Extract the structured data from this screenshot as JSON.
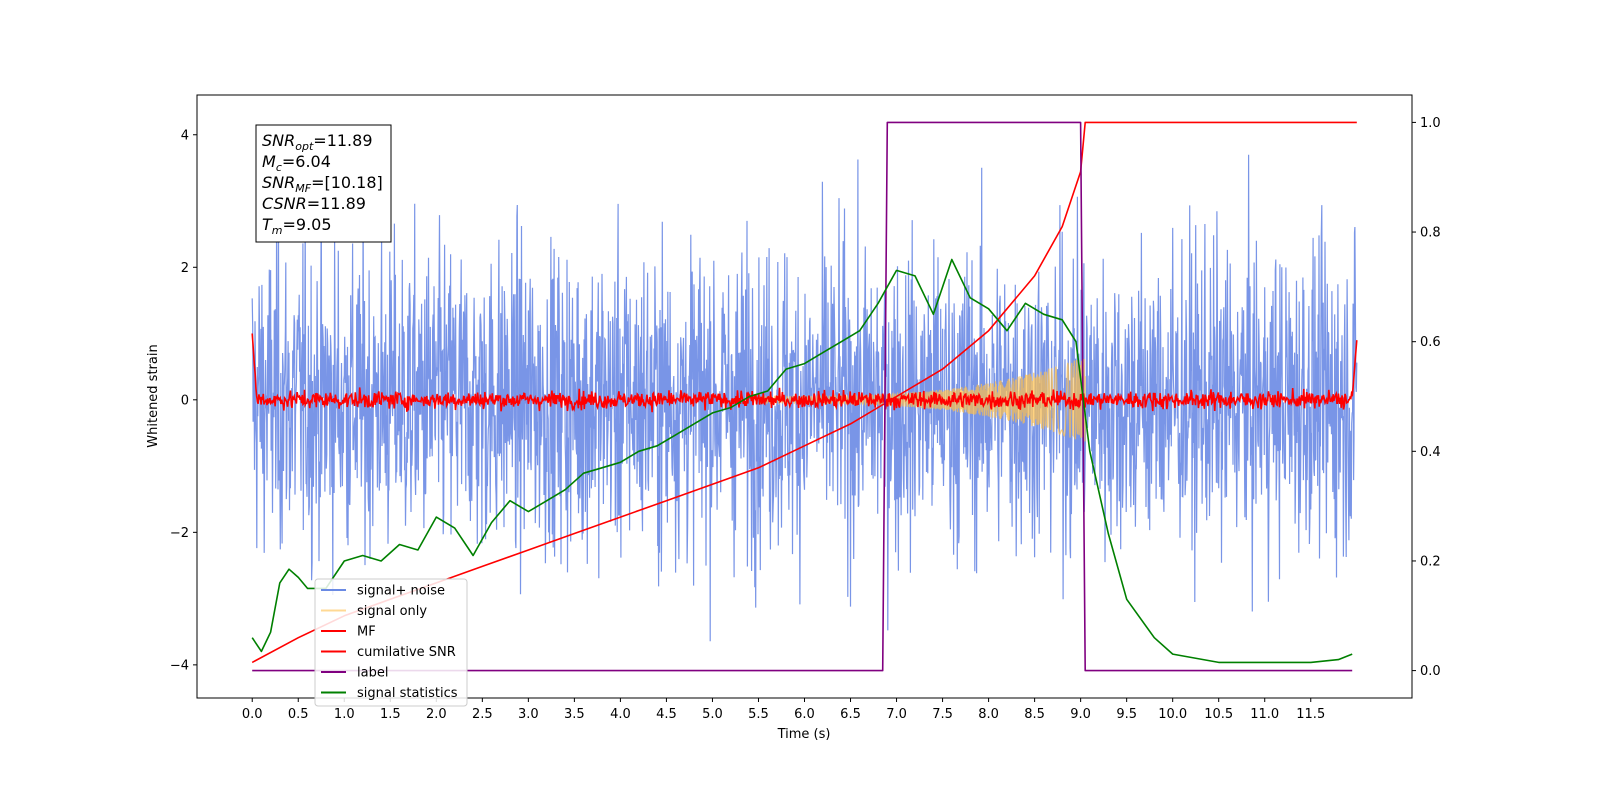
{
  "chart_data": {
    "type": "line",
    "xlabel": "Time (s)",
    "ylabel": "Whitened strain",
    "xlim": [
      -0.6,
      12.6
    ],
    "ylim": [
      -4.5,
      4.6
    ],
    "y2lim": [
      -0.05,
      1.05
    ],
    "x_ticks": [
      "0.0",
      "0.5",
      "1.0",
      "1.5",
      "2.0",
      "2.5",
      "3.0",
      "3.5",
      "4.0",
      "4.5",
      "5.0",
      "5.5",
      "6.0",
      "6.5",
      "7.0",
      "7.5",
      "8.0",
      "8.5",
      "9.0",
      "9.5",
      "10.0",
      "10.5",
      "11.0",
      "11.5"
    ],
    "y_ticks": [
      "−4",
      "−2",
      "0",
      "2",
      "4"
    ],
    "y2_ticks": [
      "0.0",
      "0.2",
      "0.4",
      "0.6",
      "0.8",
      "1.0"
    ],
    "annotation": {
      "lines": [
        {
          "var": "SNR",
          "sub": "opt",
          "value": "=11.89"
        },
        {
          "var": "M",
          "sub": "c",
          "value": "=6.04"
        },
        {
          "var": "SNR",
          "sub": "MF",
          "value": "=[10.18]"
        },
        {
          "var": "CSNR",
          "sub": "",
          "value": "=11.89"
        },
        {
          "var": "T",
          "sub": "m",
          "value": "=9.05"
        }
      ]
    },
    "legend_position": "lower-left",
    "series": [
      {
        "name": "signal+ noise",
        "color": "#6a8ae4",
        "axis": "left",
        "kind": "noise",
        "t_range": [
          0,
          12
        ],
        "band": [
          -2.0,
          2.0
        ],
        "peaks": [
          -4.1,
          4.15
        ]
      },
      {
        "name": "signal only",
        "color": "#ffc04c",
        "axis": "left",
        "kind": "chirp",
        "t_start": 5.5,
        "t_merge": 9.05,
        "amp_start": 0.05,
        "amp_merge": 0.65
      },
      {
        "name": "MF",
        "color": "#ff0000",
        "axis": "left",
        "kind": "mf",
        "t_range": [
          0,
          12
        ],
        "start": 1.0,
        "end": 0.9,
        "band": 0.12
      },
      {
        "name": "cumilative SNR",
        "color": "#ff0000",
        "axis": "right",
        "x": [
          0,
          0.5,
          1,
          1.5,
          2,
          2.5,
          3,
          3.5,
          4,
          4.5,
          5,
          5.5,
          6,
          6.5,
          7,
          7.5,
          8,
          8.5,
          8.8,
          9.0,
          9.05,
          12
        ],
        "y": [
          0.015,
          0.06,
          0.1,
          0.13,
          0.16,
          0.19,
          0.22,
          0.25,
          0.28,
          0.31,
          0.34,
          0.37,
          0.41,
          0.45,
          0.5,
          0.55,
          0.62,
          0.72,
          0.81,
          0.91,
          1.0,
          1.0
        ]
      },
      {
        "name": "label",
        "color": "#800080",
        "axis": "right",
        "x": [
          0,
          6.85,
          6.9,
          9.0,
          9.05,
          11.95
        ],
        "y": [
          0,
          0,
          1,
          1,
          0,
          0
        ]
      },
      {
        "name": "signal statistics",
        "color": "#008000",
        "axis": "right",
        "x": [
          0,
          0.1,
          0.2,
          0.3,
          0.4,
          0.5,
          0.6,
          0.8,
          1.0,
          1.2,
          1.4,
          1.6,
          1.8,
          2.0,
          2.2,
          2.4,
          2.6,
          2.8,
          3.0,
          3.2,
          3.4,
          3.6,
          3.8,
          4.0,
          4.2,
          4.4,
          4.6,
          4.8,
          5.0,
          5.2,
          5.4,
          5.6,
          5.8,
          6.0,
          6.2,
          6.4,
          6.6,
          6.8,
          7.0,
          7.2,
          7.4,
          7.6,
          7.8,
          8.0,
          8.2,
          8.4,
          8.6,
          8.8,
          8.95,
          9.1,
          9.3,
          9.5,
          9.8,
          10.0,
          10.5,
          11.0,
          11.5,
          11.8,
          11.95
        ],
        "y": [
          0.06,
          0.035,
          0.07,
          0.16,
          0.185,
          0.17,
          0.15,
          0.15,
          0.2,
          0.21,
          0.2,
          0.23,
          0.22,
          0.28,
          0.26,
          0.21,
          0.27,
          0.31,
          0.29,
          0.31,
          0.33,
          0.36,
          0.37,
          0.38,
          0.4,
          0.41,
          0.43,
          0.45,
          0.47,
          0.48,
          0.5,
          0.51,
          0.55,
          0.56,
          0.58,
          0.6,
          0.62,
          0.67,
          0.73,
          0.72,
          0.65,
          0.75,
          0.68,
          0.66,
          0.62,
          0.67,
          0.65,
          0.64,
          0.6,
          0.4,
          0.25,
          0.13,
          0.06,
          0.03,
          0.015,
          0.015,
          0.015,
          0.02,
          0.03
        ]
      }
    ]
  }
}
